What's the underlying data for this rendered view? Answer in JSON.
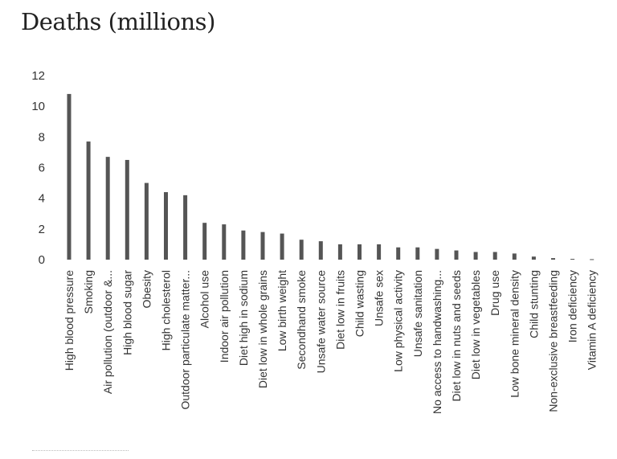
{
  "chart_data": {
    "type": "bar",
    "title": "Deaths (millions)",
    "xlabel": "",
    "ylabel": "",
    "ylim": [
      0,
      12
    ],
    "yticks": [
      0,
      2,
      4,
      6,
      8,
      10,
      12
    ],
    "grid": false,
    "legend": "none",
    "bar_color": "#555555",
    "categories": [
      "High blood pressure",
      "Smoking",
      "Air pollution (outdoor &...",
      "High blood sugar",
      "Obesity",
      "High cholesterol",
      "Outdoor particulate matter...",
      "Alcohol use",
      "Indoor air pollution",
      "Diet high in sodium",
      "Diet low in whole grains",
      "Low birth weight",
      "Secondhand smoke",
      "Unsafe water source",
      "Diet low in fruits",
      "Child wasting",
      "Unsafe sex",
      "Low physical activity",
      "Unsafe sanitation",
      "No access to handwashing...",
      "Diet low in nuts and seeds",
      "Diet low in vegetables",
      "Drug use",
      "Low bone mineral density",
      "Child stunting",
      "Non-exclusive breastfeeding",
      "Iron deficiency",
      "Vitamin A deficiency"
    ],
    "values": [
      10.8,
      7.7,
      6.7,
      6.5,
      5.0,
      4.4,
      4.2,
      2.4,
      2.3,
      1.9,
      1.8,
      1.7,
      1.3,
      1.2,
      1.0,
      1.0,
      1.0,
      0.8,
      0.8,
      0.7,
      0.6,
      0.5,
      0.5,
      0.4,
      0.2,
      0.1,
      0.05,
      0.03
    ]
  }
}
